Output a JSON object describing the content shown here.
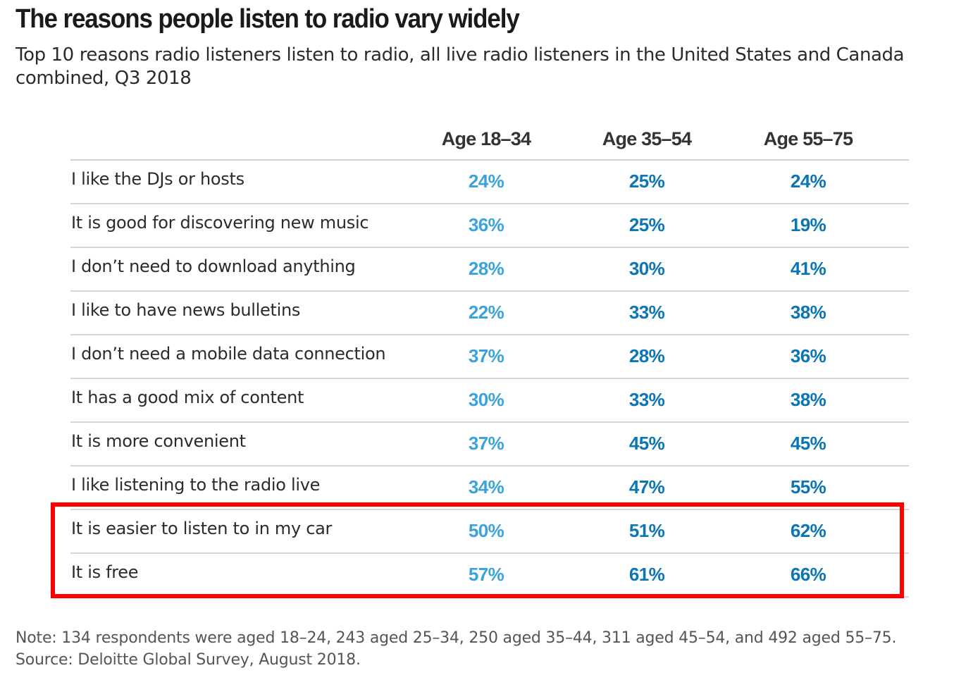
{
  "chart_data": {
    "type": "table",
    "title": "The reasons people listen to radio vary widely",
    "subtitle": "Top 10 reasons radio listeners listen to radio, all live radio listeners in the United States and Canada combined, Q3 2018",
    "columns": [
      "Age 18–34",
      "Age 35–54",
      "Age 55–75"
    ],
    "rows": [
      {
        "label": "I like the DJs or hosts",
        "values": [
          "24%",
          "25%",
          "24%"
        ]
      },
      {
        "label": "It is good for discovering new music",
        "values": [
          "36%",
          "25%",
          "19%"
        ]
      },
      {
        "label": "I don’t need to download anything",
        "values": [
          "28%",
          "30%",
          "41%"
        ]
      },
      {
        "label": "I like to have news bulletins",
        "values": [
          "22%",
          "33%",
          "38%"
        ]
      },
      {
        "label": "I don’t need a mobile data connection",
        "values": [
          "37%",
          "28%",
          "36%"
        ]
      },
      {
        "label": "It has a good mix of content",
        "values": [
          "30%",
          "33%",
          "38%"
        ]
      },
      {
        "label": "It is more convenient",
        "values": [
          "37%",
          "45%",
          "45%"
        ]
      },
      {
        "label": "I like listening to the radio live",
        "values": [
          "34%",
          "47%",
          "55%"
        ]
      },
      {
        "label": "It is easier to listen to in my car",
        "values": [
          "50%",
          "51%",
          "62%"
        ]
      },
      {
        "label": "It is free",
        "values": [
          "57%",
          "61%",
          "66%"
        ]
      }
    ],
    "column_colors": [
      "#3aa3dc",
      "#0b75b5",
      "#0b75b5"
    ],
    "highlight": {
      "rows": [
        "It is easier to listen to in my car",
        "It is free"
      ],
      "color": "#ff0000"
    },
    "note": "Note: 134 respondents were aged 18–24, 243 aged 25–34, 250 aged 35–44, 311 aged 45–54, and 492 aged 55–75.",
    "source": "Source: Deloitte Global Survey, August 2018."
  }
}
